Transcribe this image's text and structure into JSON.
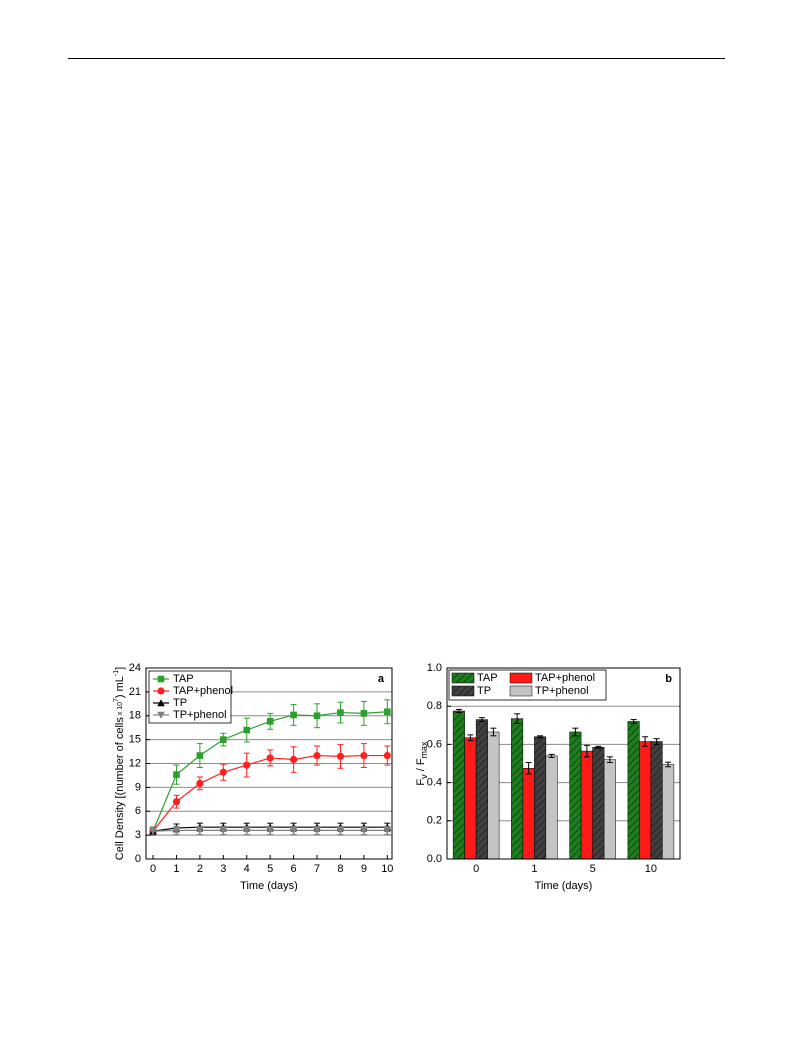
{
  "chart_data": [
    {
      "type": "line",
      "panel_label": "a",
      "xlabel": "Time (days)",
      "ylabel": [
        "Cell Density [(number of cells",
        " x 10",
        "7",
        ") mL",
        "-1",
        "]"
      ],
      "x": [
        0,
        1,
        2,
        3,
        4,
        5,
        6,
        7,
        8,
        9,
        10
      ],
      "xlim": [
        -0.3,
        10.2
      ],
      "xticks": [
        0,
        1,
        2,
        3,
        4,
        5,
        6,
        7,
        8,
        9,
        10
      ],
      "ylim": [
        0,
        24
      ],
      "yticks": [
        0,
        3,
        6,
        9,
        12,
        15,
        18,
        21,
        24
      ],
      "grid": true,
      "legend": "upper left",
      "series": [
        {
          "name": "TAP",
          "color": "#2ca02c",
          "marker": "square",
          "values": [
            3.5,
            10.6,
            13.0,
            15.0,
            16.2,
            17.3,
            18.1,
            18.0,
            18.4,
            18.3,
            18.5
          ],
          "errors": [
            0.5,
            1.2,
            1.5,
            0.8,
            1.5,
            1.0,
            1.3,
            1.5,
            1.3,
            1.5,
            1.5
          ]
        },
        {
          "name": "TAP+phenol",
          "color": "#ff2020",
          "marker": "circle",
          "values": [
            3.5,
            7.2,
            9.5,
            10.9,
            11.8,
            12.7,
            12.5,
            13.0,
            12.9,
            13.0,
            13.0
          ],
          "errors": [
            0.5,
            0.8,
            0.8,
            1.0,
            1.5,
            1.0,
            1.6,
            1.2,
            1.5,
            1.5,
            1.2
          ]
        },
        {
          "name": "TP",
          "color": "#000000",
          "marker": "triangle",
          "values": [
            3.5,
            3.9,
            4.0,
            4.0,
            4.0,
            4.0,
            4.0,
            4.0,
            4.0,
            4.0,
            4.0
          ],
          "errors": [
            0.5,
            0.5,
            0.5,
            0.5,
            0.5,
            0.5,
            0.5,
            0.5,
            0.5,
            0.5,
            0.5
          ]
        },
        {
          "name": "TP+phenol",
          "color": "#808080",
          "marker": "triangle-down",
          "values": [
            3.5,
            3.6,
            3.6,
            3.6,
            3.6,
            3.6,
            3.6,
            3.6,
            3.6,
            3.6,
            3.6
          ],
          "errors": [
            0.5,
            0.5,
            0.5,
            0.5,
            0.5,
            0.5,
            0.5,
            0.5,
            0.5,
            0.5,
            0.5
          ]
        }
      ]
    },
    {
      "type": "bar",
      "panel_label": "b",
      "xlabel": "Time (days)",
      "ylabel": [
        "F",
        "v",
        " / F",
        "max"
      ],
      "categories": [
        "0",
        "1",
        "5",
        "10"
      ],
      "ylim": [
        0,
        1.0
      ],
      "yticks": [
        {
          "value": 0,
          "label": "0.0"
        },
        0.2,
        0.4,
        0.6,
        0.8,
        {
          "value": 1,
          "label": "1.0"
        }
      ],
      "grid": true,
      "legend": "upper left",
      "series": [
        {
          "name": "TAP",
          "color": "#1e7d1e",
          "hatch": true,
          "values": [
            0.775,
            0.735,
            0.665,
            0.72
          ],
          "errors": [
            0.008,
            0.025,
            0.02,
            0.01
          ]
        },
        {
          "name": "TAP+phenol",
          "color": "#ff1a1a",
          "hatch": false,
          "values": [
            0.635,
            0.475,
            0.565,
            0.615
          ],
          "errors": [
            0.015,
            0.03,
            0.03,
            0.025
          ]
        },
        {
          "name": "TP",
          "color": "#404040",
          "hatch": true,
          "values": [
            0.73,
            0.64,
            0.585,
            0.615
          ],
          "errors": [
            0.01,
            0.005,
            0.005,
            0.015
          ]
        },
        {
          "name": "TP+phenol",
          "color": "#c4c4c4",
          "hatch": false,
          "values": [
            0.665,
            0.54,
            0.52,
            0.495
          ],
          "errors": [
            0.02,
            0.008,
            0.015,
            0.012
          ]
        }
      ]
    }
  ]
}
